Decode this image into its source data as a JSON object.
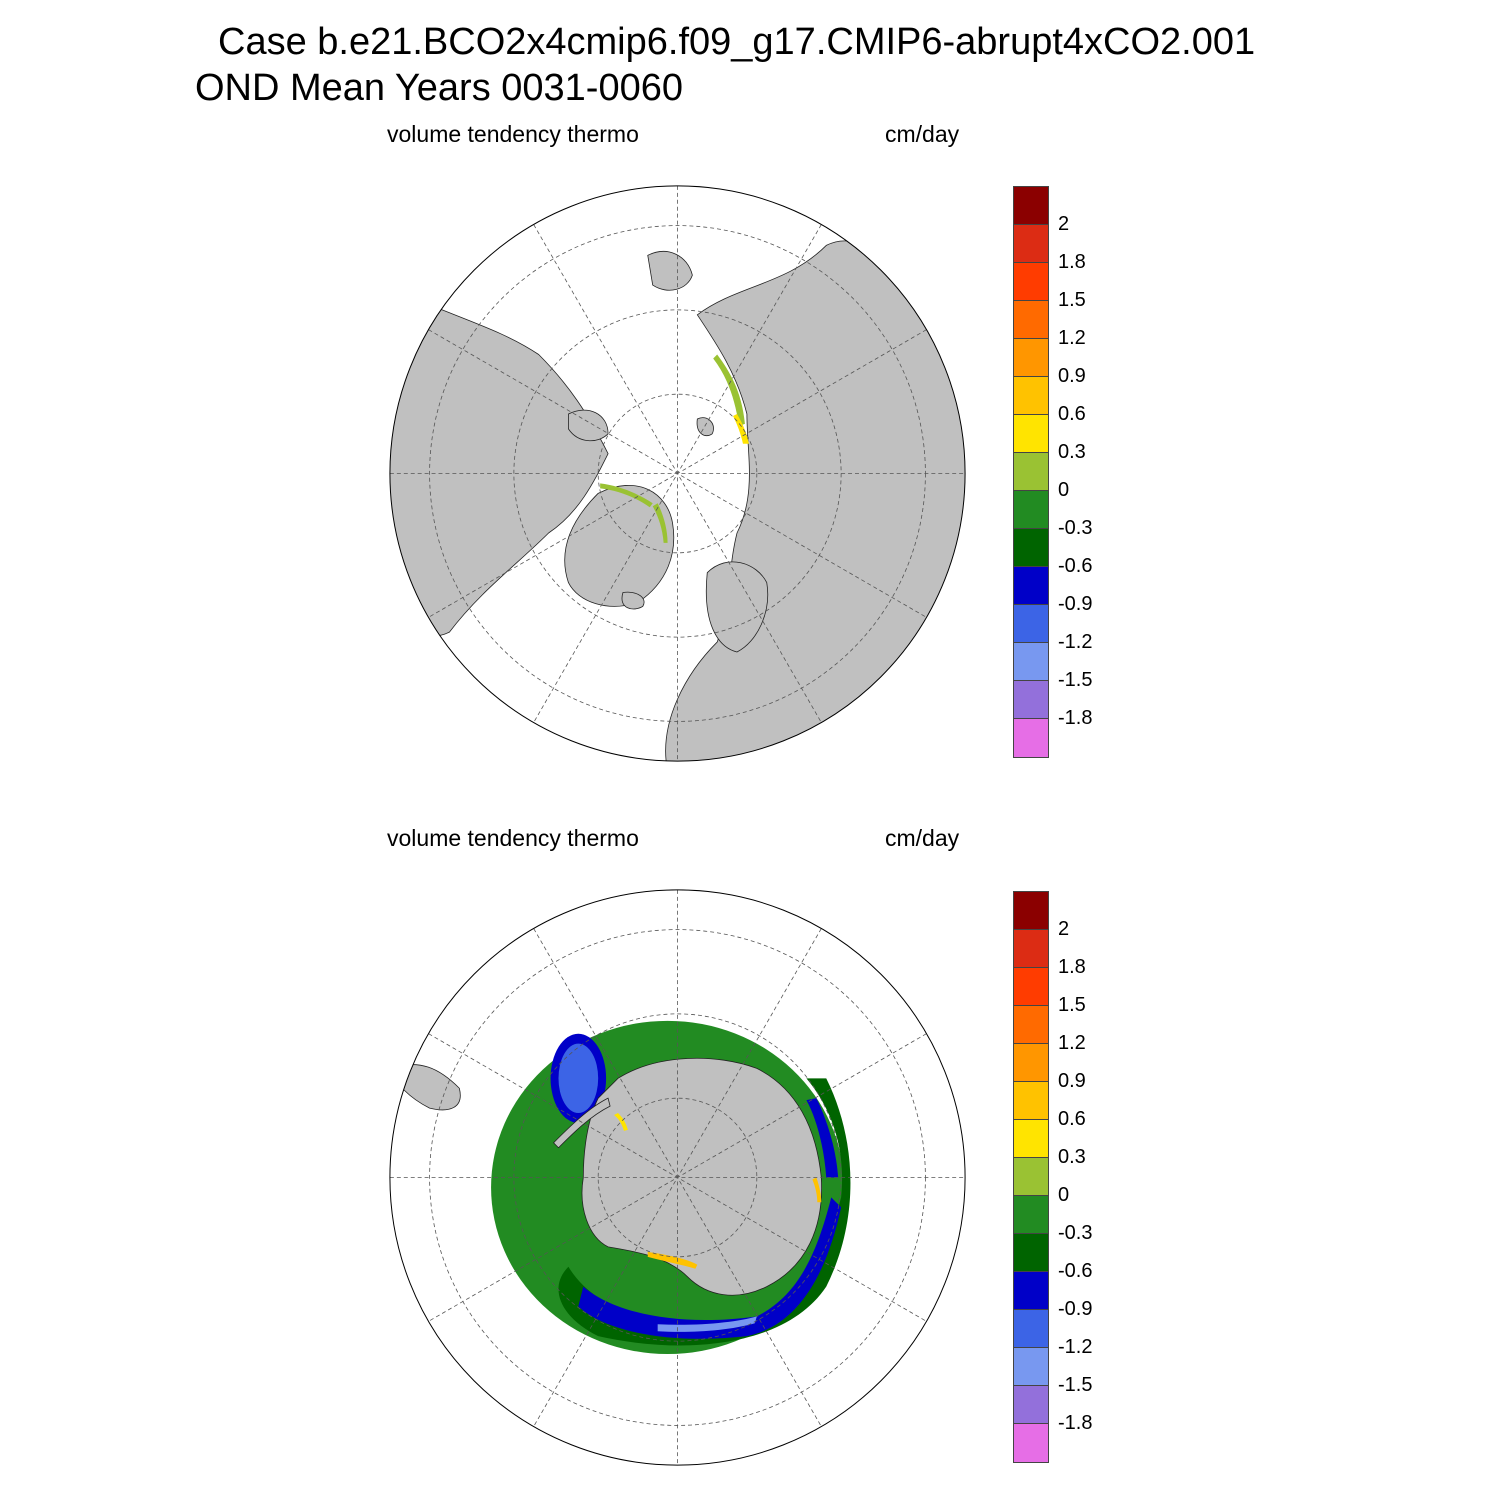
{
  "title": {
    "line1": "Case b.e21.BCO2x4cmip6.f09_g17.CMIP6-abrupt4xCO2.001",
    "line2": "OND Mean   Years 0031-0060"
  },
  "panels": [
    {
      "id": "north",
      "variable_label": "volume tendency thermo",
      "units_label": "cm/day",
      "hemisphere": "Northern"
    },
    {
      "id": "south",
      "variable_label": "volume tendency thermo",
      "units_label": "cm/day",
      "hemisphere": "Southern"
    }
  ],
  "colorbar": {
    "labels": [
      "2",
      "1.8",
      "1.5",
      "1.2",
      "0.9",
      "0.6",
      "0.3",
      "0",
      "-0.3",
      "-0.6",
      "-0.9",
      "-1.2",
      "-1.5",
      "-1.8"
    ],
    "colors": [
      "#8b0000",
      "#dc2c14",
      "#ff3c00",
      "#ff6a00",
      "#ff9600",
      "#ffc200",
      "#ffe400",
      "#9ac233",
      "#228b22",
      "#006400",
      "#0000c8",
      "#3c64e6",
      "#7898f0",
      "#9370db",
      "#e66ee6"
    ]
  },
  "colors": {
    "land": "#c0c0c0",
    "ocean": "#ffffff",
    "grid": "#555555"
  }
}
